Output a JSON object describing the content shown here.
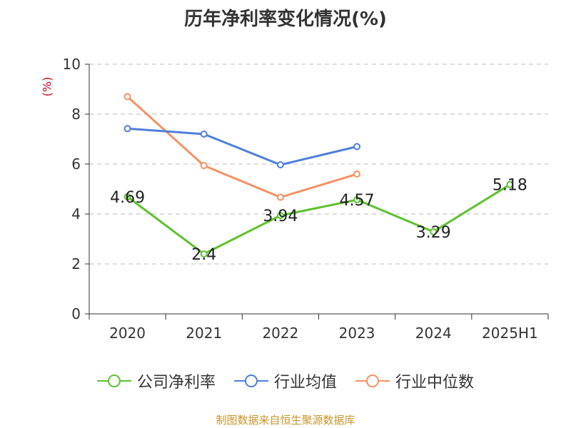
{
  "title": "历年净利率变化情况(%)",
  "source": "制图数据来自恒生聚源数据库",
  "colors": {
    "company": "#5cc22e",
    "industry_avg": "#4f7fdc",
    "industry_median": "#f79163",
    "grid": "#bbbbbb",
    "axis": "#333333"
  },
  "chart_data": {
    "type": "line",
    "title": "历年净利率变化情况(%)",
    "xlabel": "",
    "ylabel": "(%)",
    "categories": [
      "2020",
      "2021",
      "2022",
      "2023",
      "2024",
      "2025H1"
    ],
    "ylim": [
      0,
      10
    ],
    "yticks": [
      0,
      2,
      4,
      6,
      8,
      10
    ],
    "grid": true,
    "legend_position": "bottom",
    "series": [
      {
        "name": "公司净利率",
        "color": "#5cc22e",
        "values": [
          4.69,
          2.4,
          3.94,
          4.57,
          3.29,
          5.18
        ],
        "labels": [
          "4.69",
          "2.4",
          "3.94",
          "4.57",
          "3.29",
          "5.18"
        ]
      },
      {
        "name": "行业均值",
        "color": "#4f7fdc",
        "values": [
          7.42,
          7.2,
          5.97,
          6.7,
          null,
          null
        ]
      },
      {
        "name": "行业中位数",
        "color": "#f79163",
        "values": [
          8.7,
          5.94,
          4.67,
          5.6,
          null,
          null
        ]
      }
    ]
  }
}
